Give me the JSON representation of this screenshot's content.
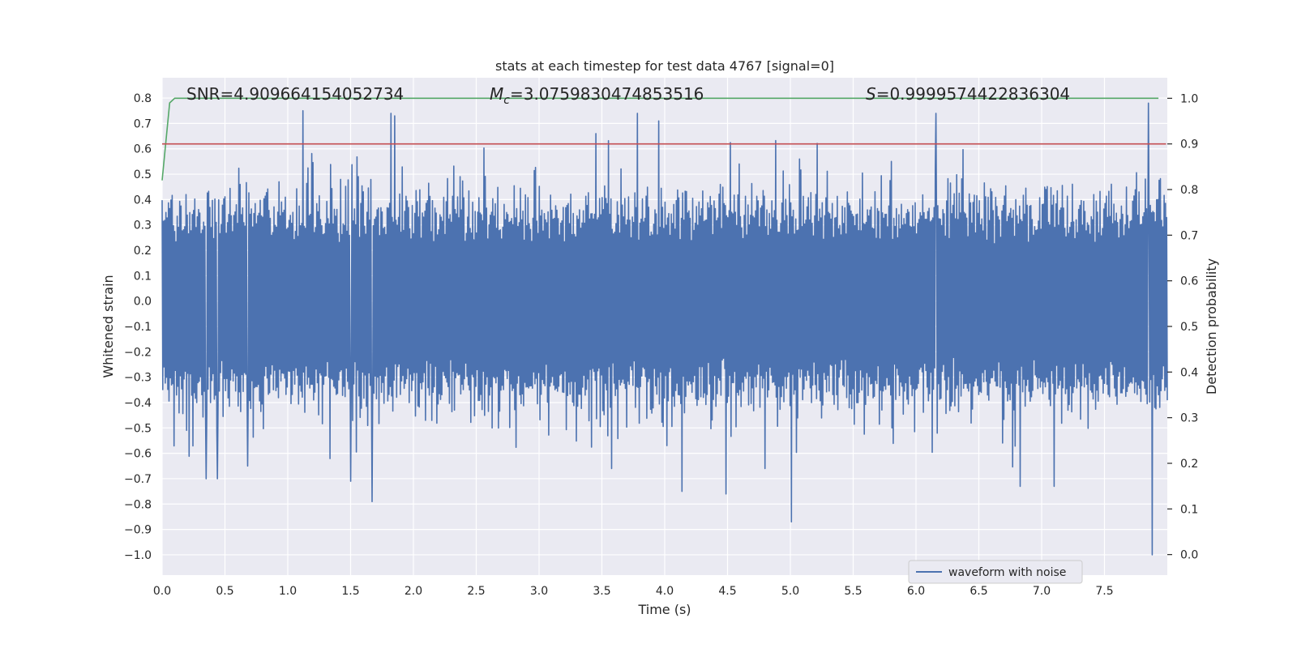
{
  "chart_data": {
    "type": "line",
    "title": "stats at each timestep for test data 4767 [signal=0]",
    "xlabel": "Time (s)",
    "ylabel": "Whitened strain",
    "y2label": "Detection probability",
    "xlim": [
      0.0,
      8.0
    ],
    "ylim": [
      -1.08,
      0.88
    ],
    "y2lim": [
      -0.045,
      1.045
    ],
    "xticks": [
      0.0,
      0.5,
      1.0,
      1.5,
      2.0,
      2.5,
      3.0,
      3.5,
      4.0,
      4.5,
      5.0,
      5.5,
      6.0,
      6.5,
      7.0,
      7.5
    ],
    "xtick_labels": [
      "0.0",
      "0.5",
      "1.0",
      "1.5",
      "2.0",
      "2.5",
      "3.0",
      "3.5",
      "4.0",
      "4.5",
      "5.0",
      "5.5",
      "6.0",
      "6.5",
      "7.0",
      "7.5"
    ],
    "yticks": [
      -1.0,
      -0.9,
      -0.8,
      -0.7,
      -0.6,
      -0.5,
      -0.4,
      -0.3,
      -0.2,
      -0.1,
      0.0,
      0.1,
      0.2,
      0.3,
      0.4,
      0.5,
      0.6,
      0.7,
      0.8
    ],
    "ytick_labels": [
      "−1.0",
      "−0.9",
      "−0.8",
      "−0.7",
      "−0.6",
      "−0.5",
      "−0.4",
      "−0.3",
      "−0.2",
      "−0.1",
      "0.0",
      "0.1",
      "0.2",
      "0.3",
      "0.4",
      "0.5",
      "0.6",
      "0.7",
      "0.8"
    ],
    "y2ticks": [
      0.0,
      0.1,
      0.2,
      0.3,
      0.4,
      0.5,
      0.6,
      0.7,
      0.8,
      0.9,
      1.0
    ],
    "y2tick_labels": [
      "0.0",
      "0.1",
      "0.2",
      "0.3",
      "0.4",
      "0.5",
      "0.6",
      "0.7",
      "0.8",
      "0.9",
      "1.0"
    ],
    "grid": true,
    "annotations": {
      "snr": "SNR=4.909664154052734",
      "mc_symbol": "M",
      "mc_sub": "c",
      "mc_value": "=3.0759830474853516",
      "s_symbol": "S",
      "s_value": "=0.9999574422836304"
    },
    "legend": {
      "position": "bottom-right",
      "entries": [
        "waveform with noise"
      ]
    },
    "series": [
      {
        "name": "waveform with noise",
        "axis": "left",
        "color": "#4c72b0",
        "t_range": [
          0.0,
          8.0
        ],
        "samples": 1600,
        "typical_envelope": [
          -0.3,
          0.3
        ],
        "peaks": [
          {
            "x": 0.35,
            "y": -0.7
          },
          {
            "x": 0.44,
            "y": -0.7
          },
          {
            "x": 0.68,
            "y": -0.65
          },
          {
            "x": 1.12,
            "y": 0.75
          },
          {
            "x": 1.5,
            "y": -0.71
          },
          {
            "x": 1.67,
            "y": -0.79
          },
          {
            "x": 1.82,
            "y": 0.74
          },
          {
            "x": 1.85,
            "y": 0.73
          },
          {
            "x": 3.78,
            "y": 0.74
          },
          {
            "x": 3.95,
            "y": 0.71
          },
          {
            "x": 4.14,
            "y": -0.75
          },
          {
            "x": 4.49,
            "y": -0.76
          },
          {
            "x": 5.01,
            "y": -0.87
          },
          {
            "x": 6.16,
            "y": 0.74
          },
          {
            "x": 6.83,
            "y": -0.73
          },
          {
            "x": 7.1,
            "y": -0.73
          },
          {
            "x": 7.85,
            "y": 0.78
          },
          {
            "x": 7.88,
            "y": -1.0
          }
        ]
      },
      {
        "name": "",
        "axis": "right",
        "color": "#55a868",
        "x": [
          0.0,
          0.06,
          0.1,
          7.93
        ],
        "y": [
          0.82,
          0.99,
          1.0,
          1.0
        ]
      },
      {
        "name": "",
        "axis": "right",
        "color": "#c44e52",
        "x": [
          0.0,
          7.99
        ],
        "y": [
          0.9,
          0.9
        ]
      }
    ]
  }
}
